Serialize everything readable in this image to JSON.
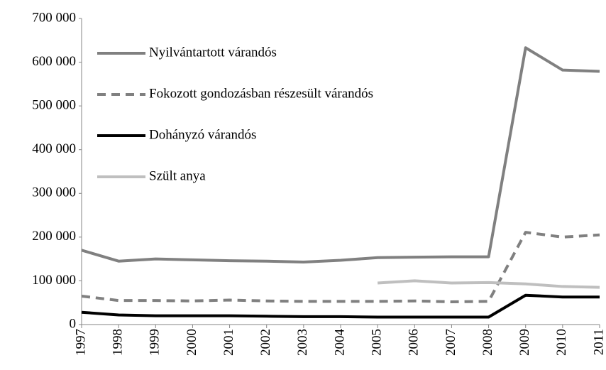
{
  "chart_data": {
    "type": "line",
    "categories": [
      "1997",
      "1998",
      "1999",
      "2000",
      "2001",
      "2002",
      "2003",
      "2004",
      "2005",
      "2006",
      "2007",
      "2008",
      "2009",
      "2010",
      "2011"
    ],
    "series": [
      {
        "name": "Nyilvántartott várandós",
        "color": "#808080",
        "dashed": false,
        "values": [
          170000,
          145000,
          150000,
          148000,
          146000,
          145000,
          143000,
          147000,
          153000,
          154000,
          155000,
          155000,
          633000,
          582000,
          579000
        ]
      },
      {
        "name": "Fokozott gondozásban részesült várandós",
        "color": "#808080",
        "dashed": true,
        "values": [
          65000,
          55000,
          55000,
          54000,
          56000,
          54000,
          53000,
          53000,
          53000,
          54000,
          52000,
          53000,
          211000,
          200000,
          205000
        ]
      },
      {
        "name": "Dohányzó várandós",
        "color": "#000000",
        "dashed": false,
        "values": [
          28000,
          22000,
          20000,
          20000,
          20000,
          19000,
          18000,
          18000,
          17000,
          17000,
          17000,
          17000,
          67000,
          63000,
          63000
        ]
      },
      {
        "name": "Szült anya",
        "color": "#bfbfbf",
        "dashed": false,
        "values": [
          null,
          null,
          null,
          null,
          null,
          null,
          null,
          null,
          95000,
          100000,
          95000,
          96000,
          93000,
          87000,
          85000
        ]
      }
    ],
    "ylim": [
      0,
      700000
    ],
    "yticks": [
      0,
      {
        "value": 100000,
        "label": "100 000"
      },
      {
        "value": 200000,
        "label": "200 000"
      },
      {
        "value": 300000,
        "label": "300 000"
      },
      {
        "value": 400000,
        "label": "400 000"
      },
      {
        "value": 500000,
        "label": "500 000"
      },
      {
        "value": 600000,
        "label": "600 000"
      },
      {
        "value": 700000,
        "label": "700 000"
      }
    ],
    "legend": "upper left"
  }
}
